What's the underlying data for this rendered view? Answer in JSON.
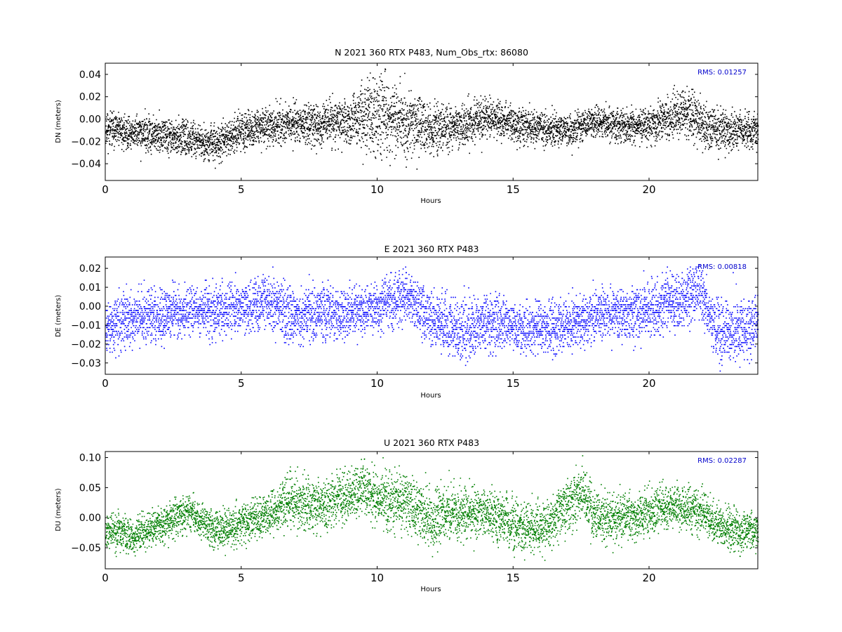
{
  "chart_data": [
    {
      "type": "scatter",
      "title": "N 2021 360 RTX  P483, Num_Obs_rtx: 86080",
      "xlabel": "Hours",
      "ylabel": "DN (meters)",
      "xlim": [
        0,
        24
      ],
      "ylim": [
        -0.055,
        0.05
      ],
      "xticks": [
        0,
        5,
        10,
        15,
        20
      ],
      "yticks": [
        -0.04,
        -0.02,
        0.0,
        0.02,
        0.04
      ],
      "xtick_labels": [
        "0",
        "5",
        "10",
        "15",
        "20"
      ],
      "ytick_labels": [
        "−0.04",
        "−0.02",
        "0.00",
        "0.02",
        "0.04"
      ],
      "annotation": "RMS:  0.01257",
      "color": "#000000",
      "annotation_color": "#0000cc",
      "quantize": 0,
      "seed": 11,
      "trend": [
        [
          0,
          -0.008
        ],
        [
          1,
          -0.012
        ],
        [
          2,
          -0.014
        ],
        [
          3,
          -0.016
        ],
        [
          4,
          -0.022
        ],
        [
          5,
          -0.01
        ],
        [
          6,
          -0.006
        ],
        [
          7,
          -0.004
        ],
        [
          8,
          -0.004
        ],
        [
          9,
          0.0
        ],
        [
          10,
          0.006
        ],
        [
          10.5,
          0.002
        ],
        [
          11,
          -0.004
        ],
        [
          12,
          -0.008
        ],
        [
          13,
          -0.006
        ],
        [
          14,
          0.0
        ],
        [
          15,
          -0.004
        ],
        [
          16,
          -0.008
        ],
        [
          17,
          -0.01
        ],
        [
          18,
          -0.002
        ],
        [
          19,
          -0.006
        ],
        [
          20,
          -0.004
        ],
        [
          21,
          0.004
        ],
        [
          21.5,
          0.006
        ],
        [
          22,
          -0.006
        ],
        [
          23,
          -0.01
        ],
        [
          24,
          -0.01
        ]
      ],
      "spread": [
        [
          0,
          0.008
        ],
        [
          4,
          0.008
        ],
        [
          6,
          0.009
        ],
        [
          9,
          0.011
        ],
        [
          10,
          0.02
        ],
        [
          11,
          0.016
        ],
        [
          12,
          0.012
        ],
        [
          13,
          0.01
        ],
        [
          15,
          0.009
        ],
        [
          18,
          0.007
        ],
        [
          20,
          0.009
        ],
        [
          21.5,
          0.011
        ],
        [
          22,
          0.011
        ],
        [
          24,
          0.008
        ]
      ]
    },
    {
      "type": "scatter",
      "title": "E 2021 360 RTX  P483",
      "xlabel": "Hours",
      "ylabel": "DE (meters)",
      "xlim": [
        0,
        24
      ],
      "ylim": [
        -0.036,
        0.026
      ],
      "xticks": [
        0,
        5,
        10,
        15,
        20
      ],
      "yticks": [
        -0.03,
        -0.02,
        -0.01,
        0.0,
        0.01,
        0.02
      ],
      "xtick_labels": [
        "0",
        "5",
        "10",
        "15",
        "20"
      ],
      "ytick_labels": [
        "−0.03",
        "−0.02",
        "−0.01",
        "0.00",
        "0.01",
        "0.02"
      ],
      "annotation": "RMS:  0.00818",
      "color": "#0000ff",
      "annotation_color": "#0000cc",
      "quantize": 0.001,
      "seed": 23,
      "trend": [
        [
          0,
          -0.01
        ],
        [
          1,
          -0.006
        ],
        [
          2,
          -0.004
        ],
        [
          3,
          -0.002
        ],
        [
          4,
          -0.002
        ],
        [
          5,
          0.0
        ],
        [
          6,
          0.002
        ],
        [
          7,
          -0.004
        ],
        [
          8,
          -0.004
        ],
        [
          9,
          -0.004
        ],
        [
          10,
          0.0
        ],
        [
          11,
          0.006
        ],
        [
          12,
          -0.006
        ],
        [
          13,
          -0.014
        ],
        [
          14,
          -0.008
        ],
        [
          15,
          -0.01
        ],
        [
          16,
          -0.012
        ],
        [
          17,
          -0.01
        ],
        [
          18,
          -0.004
        ],
        [
          19,
          -0.004
        ],
        [
          20,
          -0.002
        ],
        [
          21,
          0.004
        ],
        [
          21.8,
          0.008
        ],
        [
          22.5,
          -0.012
        ],
        [
          23,
          -0.014
        ],
        [
          24,
          -0.01
        ]
      ],
      "spread": [
        [
          0,
          0.008
        ],
        [
          5,
          0.007
        ],
        [
          7,
          0.008
        ],
        [
          10,
          0.007
        ],
        [
          12,
          0.008
        ],
        [
          13,
          0.009
        ],
        [
          15,
          0.007
        ],
        [
          18,
          0.007
        ],
        [
          21,
          0.008
        ],
        [
          24,
          0.008
        ]
      ]
    },
    {
      "type": "scatter",
      "title": "U 2021 360 RTX  P483",
      "xlabel": "Hours",
      "ylabel": "DU (meters)",
      "xlim": [
        0,
        24
      ],
      "ylim": [
        -0.085,
        0.11
      ],
      "xticks": [
        0,
        5,
        10,
        15,
        20
      ],
      "yticks": [
        -0.05,
        0.0,
        0.05,
        0.1
      ],
      "xtick_labels": [
        "0",
        "5",
        "10",
        "15",
        "20"
      ],
      "ytick_labels": [
        "−0.05",
        "0.00",
        "0.05",
        "0.10"
      ],
      "annotation": "RMS:  0.02287",
      "color": "#007f00",
      "annotation_color": "#0000cc",
      "quantize": 0,
      "seed": 37,
      "trend": [
        [
          0,
          -0.02
        ],
        [
          1,
          -0.03
        ],
        [
          2,
          -0.01
        ],
        [
          3,
          0.01
        ],
        [
          4,
          -0.02
        ],
        [
          5,
          -0.01
        ],
        [
          6,
          0.01
        ],
        [
          7,
          0.03
        ],
        [
          8,
          0.02
        ],
        [
          9,
          0.04
        ],
        [
          9.5,
          0.05
        ],
        [
          10,
          0.03
        ],
        [
          11,
          0.03
        ],
        [
          12,
          0.0
        ],
        [
          13,
          0.01
        ],
        [
          14,
          0.01
        ],
        [
          15,
          -0.01
        ],
        [
          16,
          -0.02
        ],
        [
          17,
          0.02
        ],
        [
          17.5,
          0.04
        ],
        [
          18,
          0.0
        ],
        [
          19,
          0.0
        ],
        [
          20,
          0.01
        ],
        [
          21,
          0.02
        ],
        [
          22,
          0.01
        ],
        [
          23,
          -0.02
        ],
        [
          24,
          -0.02
        ]
      ],
      "spread": [
        [
          0,
          0.016
        ],
        [
          6,
          0.018
        ],
        [
          7,
          0.025
        ],
        [
          9,
          0.022
        ],
        [
          11,
          0.028
        ],
        [
          12,
          0.026
        ],
        [
          14,
          0.022
        ],
        [
          17,
          0.024
        ],
        [
          20,
          0.02
        ],
        [
          24,
          0.018
        ]
      ]
    }
  ]
}
